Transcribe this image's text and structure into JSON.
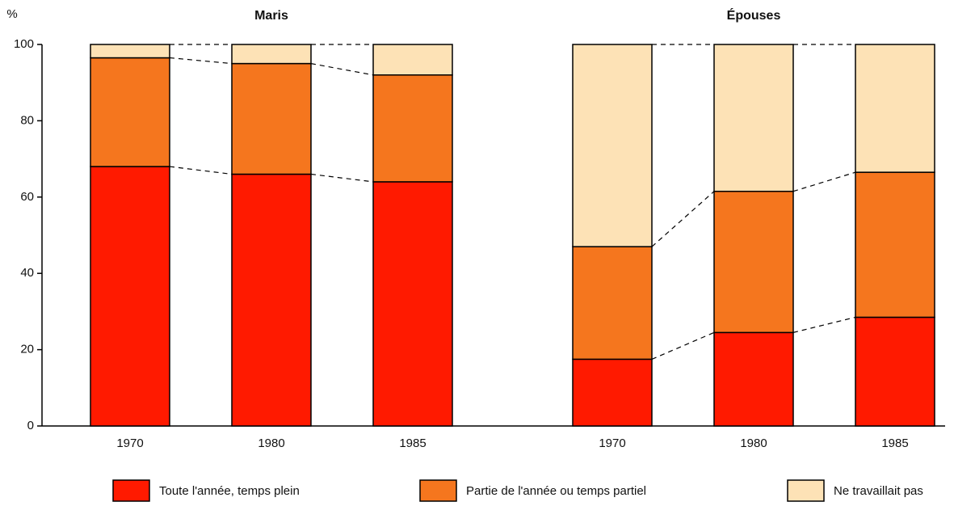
{
  "chart_data": {
    "type": "stacked_bar",
    "y_label": "%",
    "ylim": [
      0,
      100
    ],
    "yticks": [
      0,
      20,
      40,
      60,
      80,
      100
    ],
    "groups": [
      {
        "title": "Maris",
        "categories": [
          "1970",
          "1980",
          "1985"
        ]
      },
      {
        "title": "Épouses",
        "categories": [
          "1970",
          "1980",
          "1985"
        ]
      }
    ],
    "series": [
      {
        "name": "Toute l'année, temps plein",
        "color": "#ff1a00",
        "values": [
          [
            68,
            66,
            64
          ],
          [
            17.5,
            24.5,
            28.5
          ]
        ]
      },
      {
        "name": "Partie de l'année ou temps partiel",
        "color": "#f5761e",
        "values": [
          [
            28.5,
            29,
            28
          ],
          [
            29.5,
            37,
            38
          ]
        ]
      },
      {
        "name": "Ne travaillait pas",
        "color": "#fde2b6",
        "values": [
          [
            3.5,
            5,
            8
          ],
          [
            53,
            38.5,
            33.5
          ]
        ]
      }
    ]
  }
}
